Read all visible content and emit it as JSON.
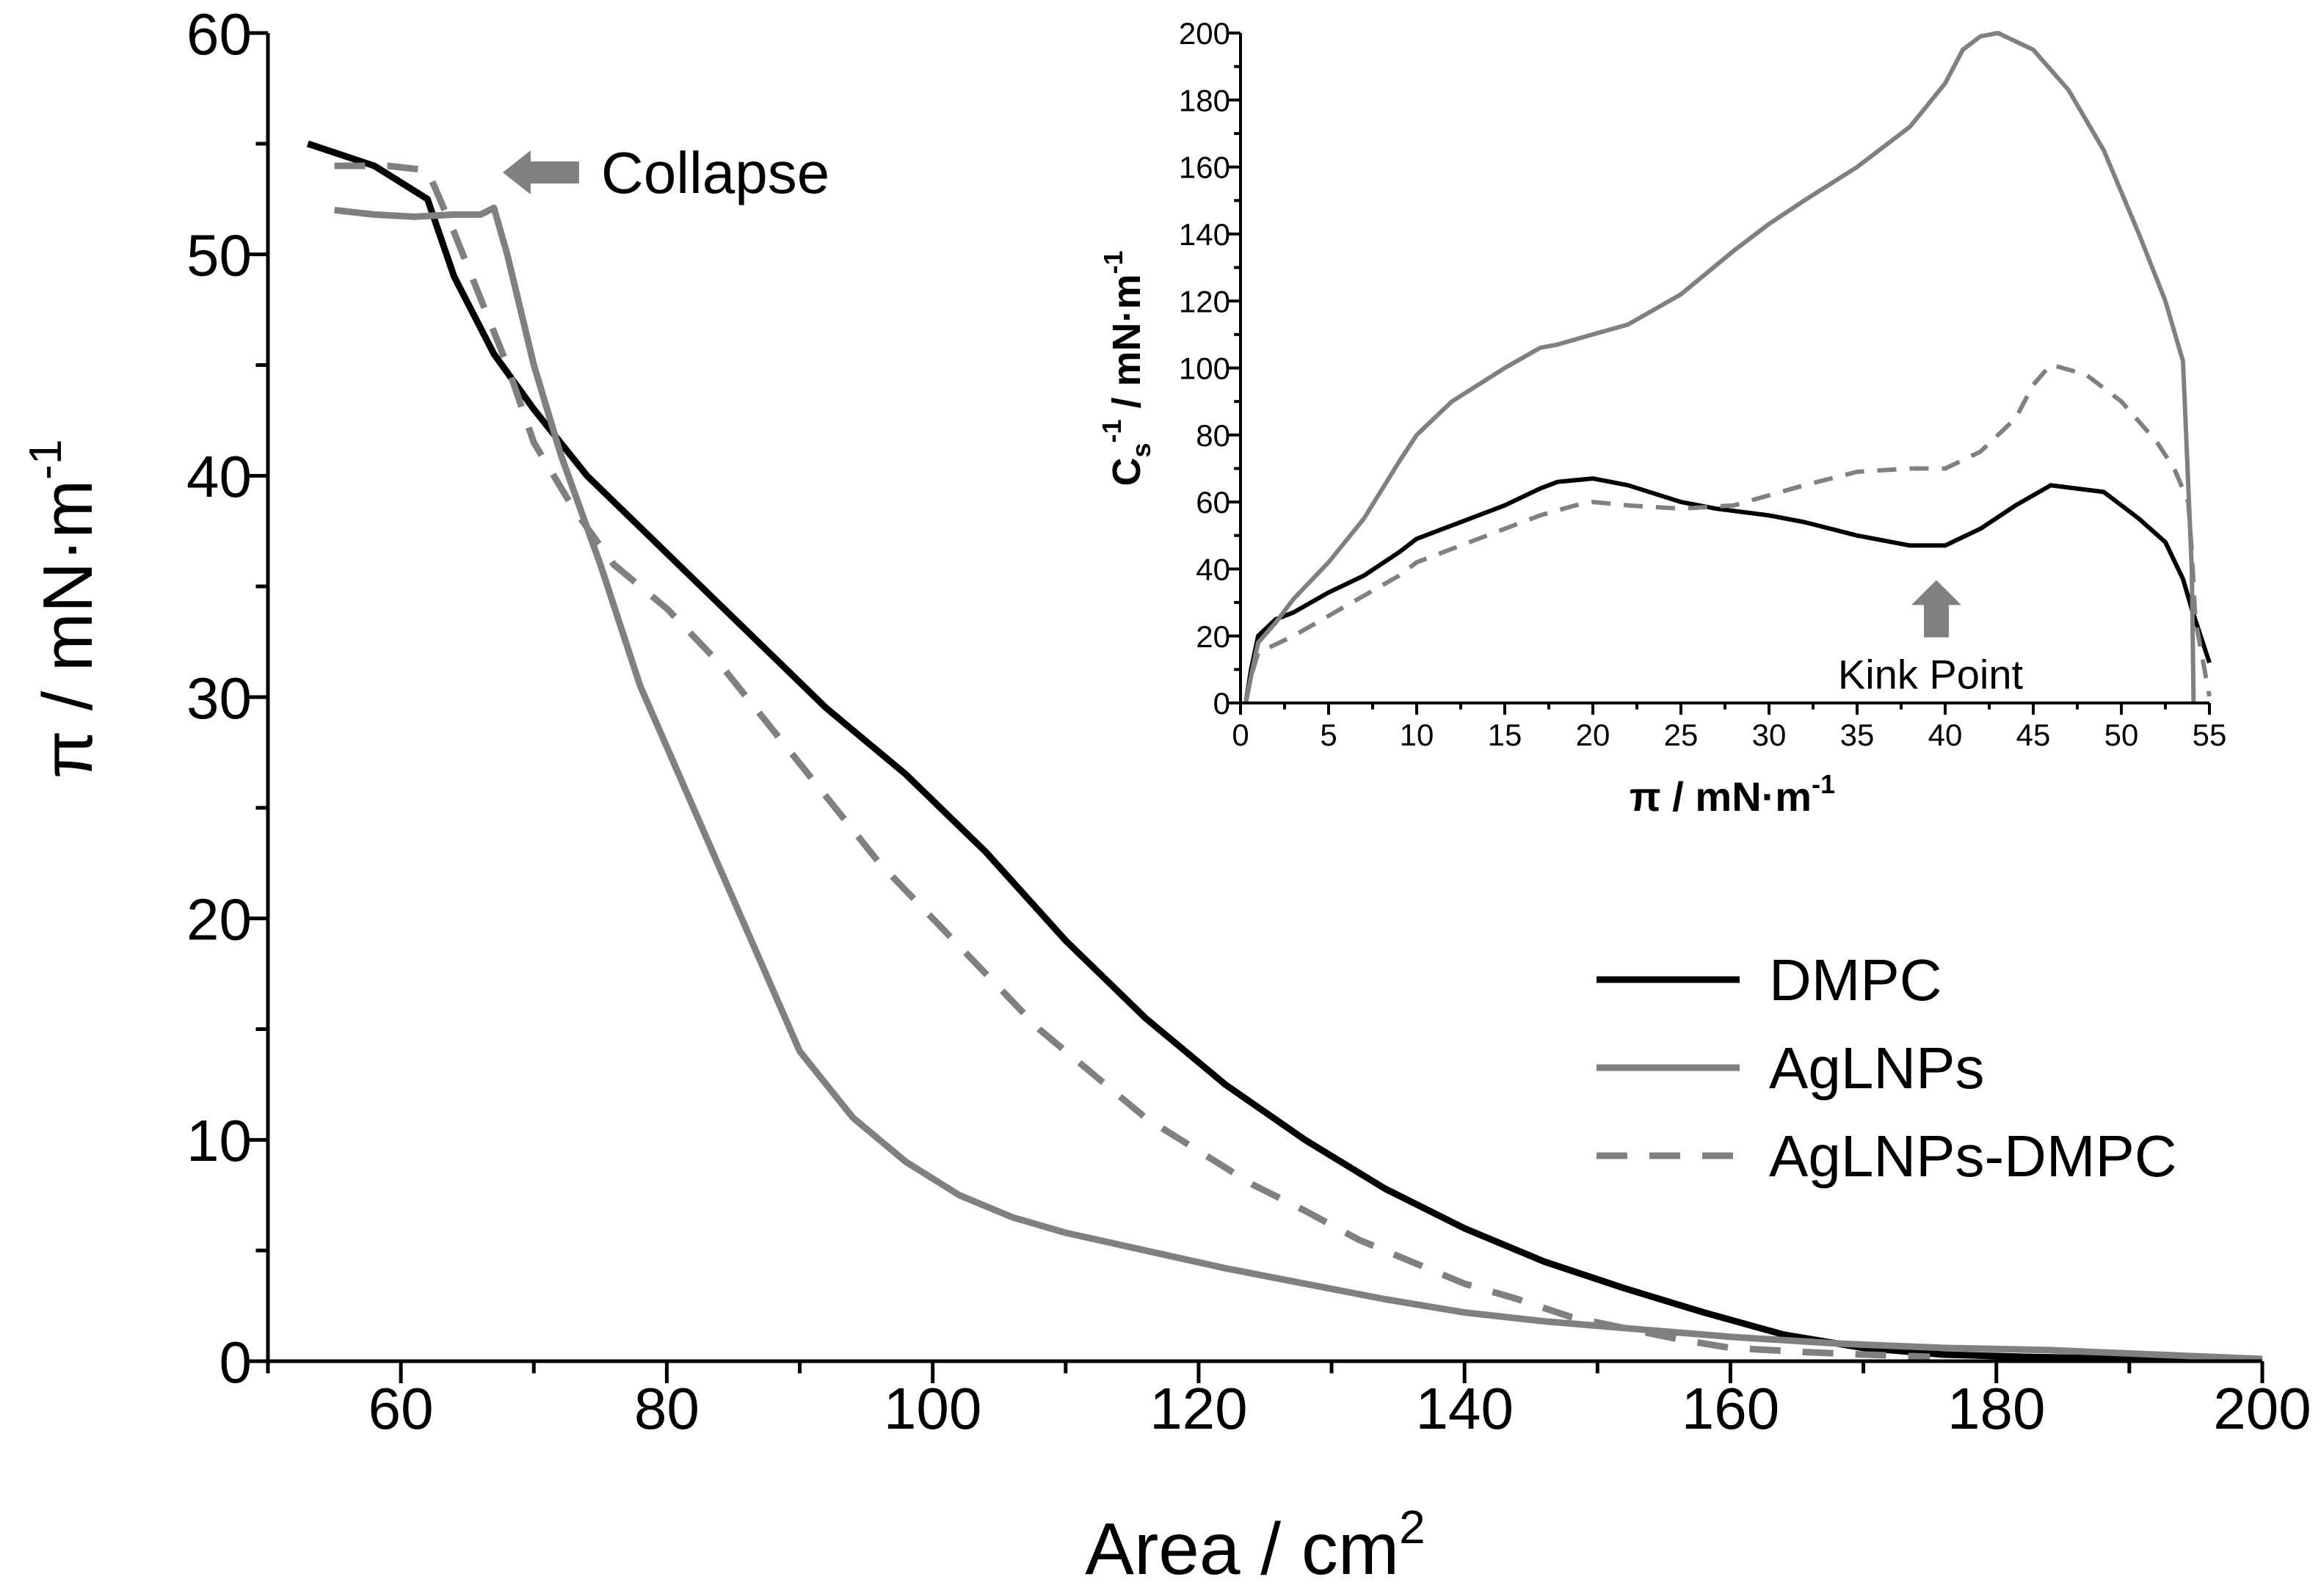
{
  "chart_data": [
    {
      "id": "main",
      "type": "line",
      "xlabel": "Area / cm",
      "xlabel_sup": "2",
      "ylabel": "π / mN·m",
      "ylabel_sup": "-1",
      "xlim": [
        50,
        200
      ],
      "ylim": [
        0,
        60
      ],
      "xticks": [
        60,
        80,
        100,
        120,
        140,
        160,
        180,
        200
      ],
      "yticks": [
        0,
        10,
        20,
        30,
        40,
        50,
        60
      ],
      "legend_position": "center-right",
      "series": [
        {
          "name": "DMPC",
          "color": "#000000",
          "style": "solid",
          "points": [
            [
              53,
              55
            ],
            [
              58,
              54
            ],
            [
              62,
              52.5
            ],
            [
              64,
              49
            ],
            [
              67,
              45.5
            ],
            [
              70,
              43
            ],
            [
              74,
              40
            ],
            [
              80,
              36.5
            ],
            [
              86,
              33
            ],
            [
              92,
              29.5
            ],
            [
              98,
              26.5
            ],
            [
              104,
              23
            ],
            [
              110,
              19
            ],
            [
              116,
              15.5
            ],
            [
              122,
              12.5
            ],
            [
              128,
              10
            ],
            [
              134,
              7.8
            ],
            [
              140,
              6
            ],
            [
              146,
              4.5
            ],
            [
              152,
              3.3
            ],
            [
              158,
              2.2
            ],
            [
              164,
              1.2
            ],
            [
              170,
              0.6
            ],
            [
              176,
              0.3
            ],
            [
              182,
              0.2
            ],
            [
              190,
              0.1
            ],
            [
              200,
              0.1
            ]
          ]
        },
        {
          "name": "AgLNPs",
          "color": "#808080",
          "style": "solid",
          "points": [
            [
              55,
              52
            ],
            [
              58,
              51.8
            ],
            [
              61,
              51.7
            ],
            [
              64,
              51.8
            ],
            [
              66,
              51.8
            ],
            [
              67,
              52.1
            ],
            [
              68,
              50
            ],
            [
              70,
              45
            ],
            [
              72,
              41
            ],
            [
              75,
              36
            ],
            [
              78,
              30.5
            ],
            [
              82,
              25
            ],
            [
              86,
              19.5
            ],
            [
              90,
              14
            ],
            [
              94,
              11
            ],
            [
              98,
              9
            ],
            [
              102,
              7.5
            ],
            [
              106,
              6.5
            ],
            [
              110,
              5.8
            ],
            [
              116,
              5
            ],
            [
              122,
              4.2
            ],
            [
              128,
              3.5
            ],
            [
              134,
              2.8
            ],
            [
              140,
              2.2
            ],
            [
              146,
              1.8
            ],
            [
              152,
              1.5
            ],
            [
              160,
              1.1
            ],
            [
              168,
              0.8
            ],
            [
              176,
              0.6
            ],
            [
              184,
              0.5
            ],
            [
              192,
              0.3
            ],
            [
              200,
              0.1
            ]
          ]
        },
        {
          "name": "AgLNPs-DMPC",
          "color": "#808080",
          "style": "dashed",
          "points": [
            [
              55,
              54
            ],
            [
              59,
              54
            ],
            [
              62,
              53.8
            ],
            [
              64,
              51
            ],
            [
              66,
              48
            ],
            [
              68,
              45
            ],
            [
              70,
              41.5
            ],
            [
              73,
              38.5
            ],
            [
              76,
              36
            ],
            [
              80,
              34
            ],
            [
              84,
              31.5
            ],
            [
              88,
              28.5
            ],
            [
              92,
              25.5
            ],
            [
              96,
              22.5
            ],
            [
              100,
              20
            ],
            [
              104,
              17.5
            ],
            [
              108,
              15
            ],
            [
              112,
              13
            ],
            [
              116,
              11
            ],
            [
              120,
              9.5
            ],
            [
              124,
              8
            ],
            [
              128,
              6.8
            ],
            [
              132,
              5.5
            ],
            [
              136,
              4.5
            ],
            [
              140,
              3.5
            ],
            [
              144,
              2.8
            ],
            [
              148,
              2
            ],
            [
              152,
              1.5
            ],
            [
              156,
              1
            ],
            [
              160,
              0.6
            ],
            [
              166,
              0.4
            ],
            [
              170,
              0.3
            ],
            [
              175,
              0.2
            ]
          ]
        }
      ],
      "annotations": [
        {
          "text": "Collapse",
          "arrow_at": [
            67,
            53.8
          ],
          "arrow_direction": "left"
        }
      ]
    },
    {
      "id": "inset",
      "type": "line",
      "xlabel": "π / mN·m",
      "xlabel_sup": "-1",
      "ylabel_main": "C",
      "ylabel_sub": "s",
      "ylabel_sup": "-1",
      "ylabel_rest": " / mN·m",
      "ylabel_rest_sup": "-1",
      "xlim": [
        0,
        55
      ],
      "ylim": [
        0,
        200
      ],
      "xticks": [
        0,
        5,
        10,
        15,
        20,
        25,
        30,
        35,
        40,
        45,
        50,
        55
      ],
      "yticks": [
        0,
        20,
        40,
        60,
        80,
        100,
        120,
        140,
        160,
        180,
        200
      ],
      "series": [
        {
          "name": "DMPC",
          "color": "#000000",
          "style": "solid",
          "points": [
            [
              0.3,
              0
            ],
            [
              0.6,
              10
            ],
            [
              1,
              20
            ],
            [
              2,
              25
            ],
            [
              3,
              27
            ],
            [
              5,
              33
            ],
            [
              7,
              38
            ],
            [
              9,
              45
            ],
            [
              10,
              49
            ],
            [
              12,
              53
            ],
            [
              15,
              59
            ],
            [
              17,
              64
            ],
            [
              18,
              66
            ],
            [
              20,
              67
            ],
            [
              22,
              65
            ],
            [
              25,
              60
            ],
            [
              27,
              58
            ],
            [
              30,
              56
            ],
            [
              32,
              54
            ],
            [
              35,
              50
            ],
            [
              38,
              47
            ],
            [
              40,
              47
            ],
            [
              42,
              52
            ],
            [
              44,
              59
            ],
            [
              46,
              65
            ],
            [
              49,
              63
            ],
            [
              51,
              55
            ],
            [
              52.5,
              48
            ],
            [
              53.5,
              37
            ],
            [
              54,
              28
            ],
            [
              55,
              12
            ]
          ]
        },
        {
          "name": "AgLNPs",
          "color": "#808080",
          "style": "solid",
          "points": [
            [
              0.3,
              0
            ],
            [
              0.6,
              8
            ],
            [
              1,
              18
            ],
            [
              2,
              24
            ],
            [
              3,
              31
            ],
            [
              5,
              42
            ],
            [
              7,
              55
            ],
            [
              9,
              72
            ],
            [
              10,
              80
            ],
            [
              12,
              90
            ],
            [
              15,
              100
            ],
            [
              17,
              106
            ],
            [
              18,
              107
            ],
            [
              20,
              110
            ],
            [
              22,
              113
            ],
            [
              25,
              122
            ],
            [
              28,
              135
            ],
            [
              30,
              143
            ],
            [
              32,
              150
            ],
            [
              35,
              160
            ],
            [
              38,
              172
            ],
            [
              40,
              185
            ],
            [
              41,
              195
            ],
            [
              42,
              199
            ],
            [
              43,
              200
            ],
            [
              45,
              195
            ],
            [
              47,
              183
            ],
            [
              49,
              165
            ],
            [
              51,
              140
            ],
            [
              52.5,
              120
            ],
            [
              53.5,
              102
            ],
            [
              54,
              40
            ],
            [
              54.1,
              0
            ]
          ]
        },
        {
          "name": "AgLNPs-DMPC",
          "color": "#808080",
          "style": "dashed",
          "points": [
            [
              0.3,
              0
            ],
            [
              0.6,
              8
            ],
            [
              1,
              15
            ],
            [
              3,
              20
            ],
            [
              5,
              26
            ],
            [
              7,
              32
            ],
            [
              9,
              38
            ],
            [
              10,
              42
            ],
            [
              12,
              46
            ],
            [
              15,
              52
            ],
            [
              17,
              56
            ],
            [
              19,
              59
            ],
            [
              20,
              60
            ],
            [
              22,
              59
            ],
            [
              25,
              58
            ],
            [
              28,
              59
            ],
            [
              30,
              62
            ],
            [
              32,
              65
            ],
            [
              35,
              69
            ],
            [
              38,
              70
            ],
            [
              40,
              70
            ],
            [
              42,
              75
            ],
            [
              44,
              85
            ],
            [
              45,
              95
            ],
            [
              46,
              101
            ],
            [
              48,
              98
            ],
            [
              50,
              90
            ],
            [
              52,
              78
            ],
            [
              53,
              70
            ],
            [
              53.8,
              60
            ],
            [
              54,
              45
            ],
            [
              54.2,
              25
            ],
            [
              55,
              2
            ]
          ]
        }
      ],
      "annotations": [
        {
          "text": "Kink Point",
          "arrow_at": [
            39.5,
            38
          ],
          "arrow_direction": "up"
        }
      ]
    }
  ]
}
